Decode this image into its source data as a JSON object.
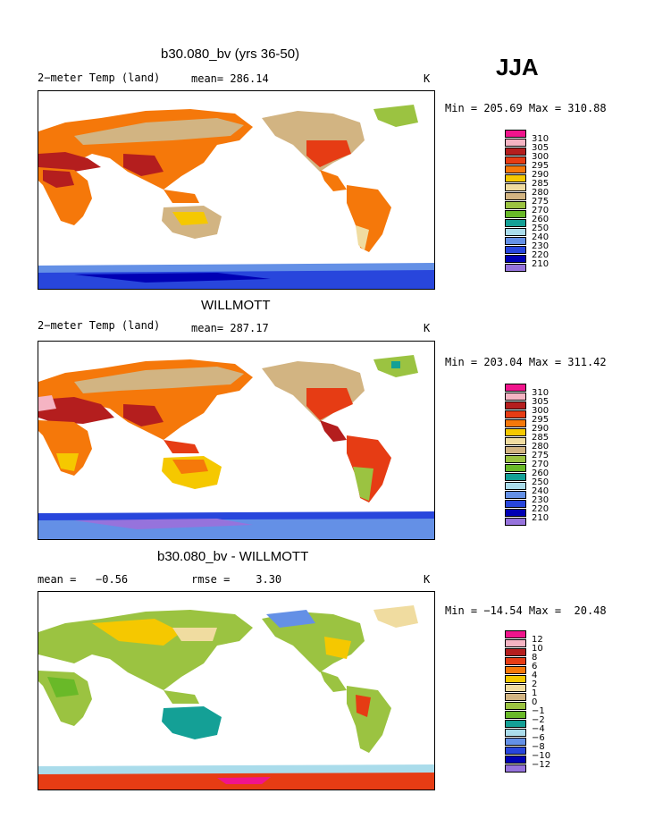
{
  "season": "JJA",
  "panels": [
    {
      "title": "b30.080_bv (yrs 36-50)",
      "left_label": "2−meter Temp (land)",
      "mid_label": "mean= 286.14",
      "units": "K",
      "minmax": "Min = 205.69 Max = 310.88",
      "colorbar_labels": [
        "310",
        "305",
        "300",
        "295",
        "290",
        "285",
        "280",
        "275",
        "270",
        "260",
        "250",
        "240",
        "230",
        "220",
        "210"
      ]
    },
    {
      "title": "WILLMOTT",
      "left_label": "2−meter Temp (land)",
      "mid_label": "mean= 287.17",
      "units": "K",
      "minmax": "Min = 203.04 Max = 311.42",
      "colorbar_labels": [
        "310",
        "305",
        "300",
        "295",
        "290",
        "285",
        "280",
        "275",
        "270",
        "260",
        "250",
        "240",
        "230",
        "220",
        "210"
      ]
    },
    {
      "title": "b30.080_bv - WILLMOTT",
      "left_label": "mean =   −0.56",
      "mid_label": "rmse =    3.30",
      "units": "K",
      "minmax": "Min = −14.54 Max =  20.48",
      "colorbar_labels": [
        "12",
        "10",
        "8",
        "6",
        "4",
        "2",
        "1",
        "0",
        "−1",
        "−2",
        "−4",
        "−6",
        "−8",
        "−10",
        "−12"
      ]
    }
  ],
  "colors": {
    "palette": [
      "#f0148c",
      "#f5b4c3",
      "#b41e1e",
      "#e63c14",
      "#f5780a",
      "#f5c800",
      "#f0dca0",
      "#d2b482",
      "#9bc341",
      "#69b928",
      "#14a096",
      "#aadceb",
      "#6490e6",
      "#2846dc",
      "#0000b4",
      "#9673dc"
    ],
    "land_warm": "#e63c14",
    "land_hot": "#b41e1e",
    "land_mid": "#f5780a",
    "land_tan": "#d2b482",
    "land_cold": "#2846dc",
    "land_green": "#9bc341",
    "ocean": "#ffffff"
  }
}
